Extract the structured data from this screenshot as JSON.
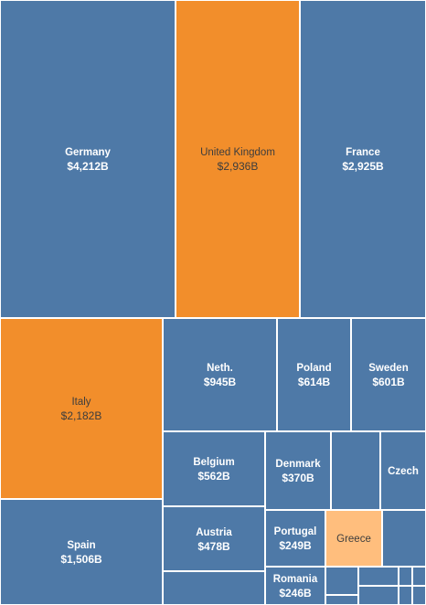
{
  "chart_data": {
    "type": "treemap",
    "colors": {
      "default": "#4e79a7",
      "highlight": "#f28e2b",
      "light": "#ffbe7d",
      "label_light": "#ffffff",
      "label_dark": "#3d3d3d"
    },
    "cells": [
      {
        "name": "Germany",
        "value": "$4,212B",
        "color": "default"
      },
      {
        "name": "United Kingdom",
        "value": "$2,936B",
        "color": "highlight"
      },
      {
        "name": "France",
        "value": "$2,925B",
        "color": "default"
      },
      {
        "name": "Italy",
        "value": "$2,182B",
        "color": "highlight"
      },
      {
        "name": "Neth.",
        "value": "$945B",
        "color": "default"
      },
      {
        "name": "Poland",
        "value": "$614B",
        "color": "default"
      },
      {
        "name": "Sweden",
        "value": "$601B",
        "color": "default"
      },
      {
        "name": "Belgium",
        "value": "$562B",
        "color": "default"
      },
      {
        "name": "Denmark",
        "value": "$370B",
        "color": "default"
      },
      {
        "name": "Czech",
        "value": "",
        "color": "default"
      },
      {
        "name": "Austria",
        "value": "$478B",
        "color": "default"
      },
      {
        "name": "Portugal",
        "value": "$249B",
        "color": "default"
      },
      {
        "name": "Greece",
        "value": "",
        "color": "light"
      },
      {
        "name": "Spain",
        "value": "$1,506B",
        "color": "default"
      },
      {
        "name": "Romania",
        "value": "$246B",
        "color": "default"
      },
      {
        "name": "",
        "value": "",
        "color": "default"
      },
      {
        "name": "",
        "value": "",
        "color": "default"
      },
      {
        "name": "",
        "value": "",
        "color": "default"
      },
      {
        "name": "",
        "value": "",
        "color": "default"
      },
      {
        "name": "",
        "value": "",
        "color": "default"
      },
      {
        "name": "",
        "value": "",
        "color": "default"
      },
      {
        "name": "",
        "value": "",
        "color": "default"
      },
      {
        "name": "",
        "value": "",
        "color": "default"
      },
      {
        "name": "",
        "value": "",
        "color": "default"
      },
      {
        "name": "",
        "value": "",
        "color": "default"
      },
      {
        "name": "",
        "value": "",
        "color": "default"
      }
    ]
  }
}
